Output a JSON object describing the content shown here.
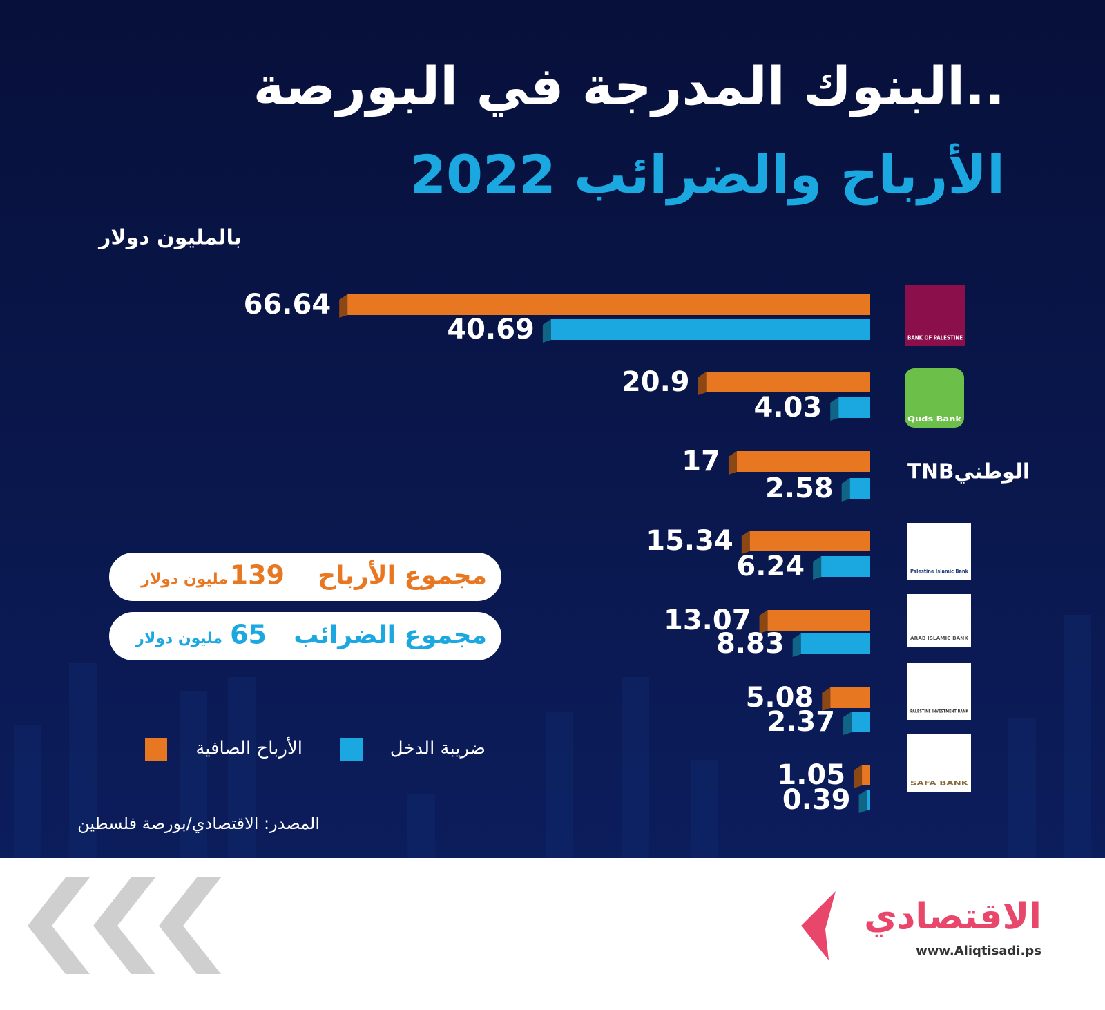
{
  "chart_data": {
    "type": "barh",
    "title": "البنوك المدرجة في البورصة..",
    "subtitle": "الأرباح والضرائب 2022",
    "unit_label": "بالمليون دولار",
    "categories": [
      "BANK OF PALESTINE",
      "Quds Bank",
      "TNBالوطني",
      "Palestine Islamic Bank",
      "ARAB ISLAMIC BANK",
      "PALESTINE INVESTMENT BANK",
      "SAFA BANK"
    ],
    "series": [
      {
        "name": "الأرباح الصافية",
        "color": "#e87722",
        "values": [
          66.64,
          20.9,
          17,
          15.34,
          13.07,
          5.08,
          1.05
        ]
      },
      {
        "name": "ضريبة الدخل",
        "color": "#1ba8e0",
        "values": [
          40.69,
          4.03,
          2.58,
          6.24,
          8.83,
          2.37,
          0.39
        ]
      }
    ],
    "xlim": [
      0,
      70
    ],
    "annotations": [
      {
        "text": "مجموع الأرباح",
        "value": 139,
        "unit": "مليون دولار"
      },
      {
        "text": "مجموع الضرائب",
        "value": 65,
        "unit": "مليون دولار"
      }
    ],
    "source": "المصدر: الاقتصادي/بورصة فلسطين",
    "brand": {
      "name": "الاقتصادي",
      "url": "www.Aliqtisadi.ps"
    }
  }
}
